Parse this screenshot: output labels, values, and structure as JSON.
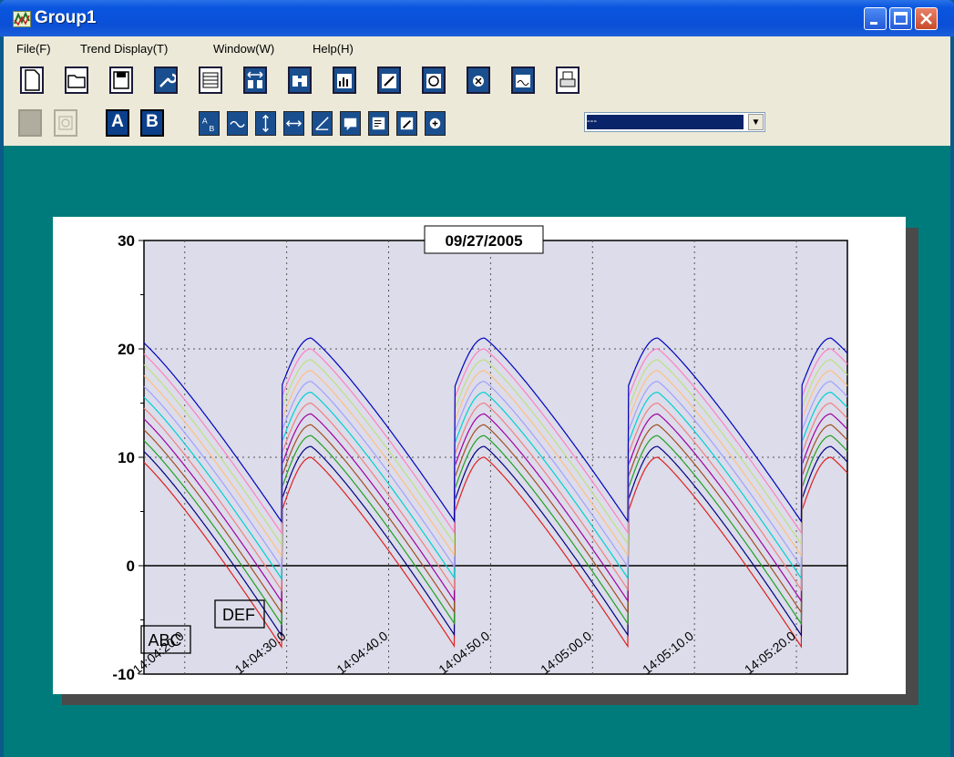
{
  "window": {
    "title": "Group1",
    "icon": "trend-chart-icon"
  },
  "menu": [
    {
      "label": "File(F)"
    },
    {
      "label": "Trend Display(T)"
    },
    {
      "label": "Window(W)"
    },
    {
      "label": "Help(H)"
    }
  ],
  "toolbar1": [
    "new-file-icon",
    "open-folder-icon",
    "save-icon",
    "tool-wrench-icon",
    "table-icon",
    "range-ab-icon",
    "binoculars-icon",
    "bar-chart-icon",
    "pen-edit-icon",
    "alarm-icon",
    "alarm-reset-icon",
    "window-icon",
    "print-icon"
  ],
  "toolbar2": {
    "buttons": [
      "gray-square-icon",
      "refresh-icon",
      "a-button",
      "b-button",
      "swap-ab-icon",
      "zoom-icon",
      "vertical-scale-icon",
      "horizontal-scale-icon",
      "time-axis-icon",
      "comment-icon",
      "list-icon",
      "edit-icon",
      "zoom-in-icon"
    ],
    "a_label": "A",
    "b_label": "B",
    "dropdown_value": "---"
  },
  "colors": {
    "client_bg": "#007b7b",
    "plot_bg": "#dcdcea"
  },
  "chart_data": {
    "type": "line",
    "title": "09/27/2005",
    "ylim": [
      -10,
      30
    ],
    "yticks": [
      -10,
      0,
      10,
      20,
      30
    ],
    "xtick_labels": [
      "14:04:20.0",
      "14:04:30.0",
      "14:04:40.0",
      "14:04:50.0",
      "14:05:00.0",
      "14:05:10.0",
      "14:05:20.0"
    ],
    "grid": true,
    "period_seconds": 17,
    "start_time": "14:04:16",
    "end_time": "14:05:25",
    "series": [
      {
        "color": "#e02020",
        "offset": 0
      },
      {
        "color": "#000080",
        "offset": 1
      },
      {
        "color": "#20a020",
        "offset": 2
      },
      {
        "color": "#a05020",
        "offset": 3
      },
      {
        "color": "#a000a0",
        "offset": 4
      },
      {
        "color": "#f08080",
        "offset": 5
      },
      {
        "color": "#00d0d0",
        "offset": 6
      },
      {
        "color": "#a0a0ff",
        "offset": 7
      },
      {
        "color": "#ffc080",
        "offset": 8
      },
      {
        "color": "#c0e080",
        "offset": 9
      },
      {
        "color": "#ff80c0",
        "offset": 10
      },
      {
        "color": "#0000c0",
        "offset": 11
      }
    ],
    "peak_base": 10,
    "low_base": -7.5,
    "annotations": [
      "ABC",
      "DEF"
    ]
  }
}
